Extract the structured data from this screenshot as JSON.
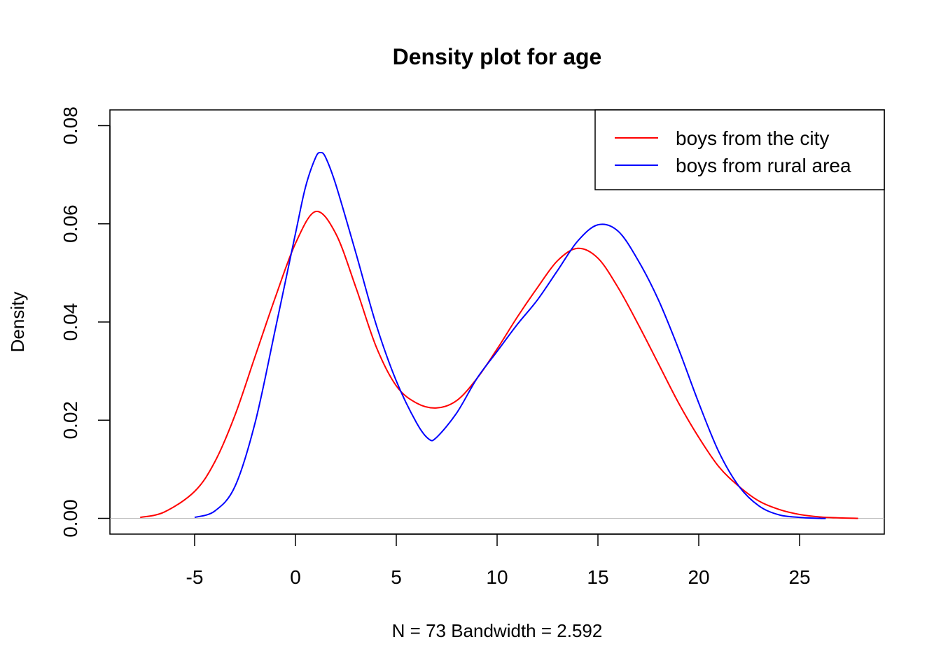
{
  "chart_data": {
    "type": "line",
    "title": "Density plot for age",
    "xlabel": "N = 73   Bandwidth = 2.592",
    "ylabel": "Density",
    "xlim": [
      -9.2,
      29.2
    ],
    "ylim": [
      -0.0032,
      0.0832
    ],
    "x_ticks": [
      -5,
      0,
      5,
      10,
      15,
      20,
      25
    ],
    "y_ticks": [
      0.0,
      0.02,
      0.04,
      0.06,
      0.08
    ],
    "x_tick_labels": [
      "-5",
      "0",
      "5",
      "10",
      "15",
      "20",
      "25"
    ],
    "y_tick_labels": [
      "0.00",
      "0.02",
      "0.04",
      "0.06",
      "0.08"
    ],
    "zero_line": true,
    "legend_position": "top-right",
    "series": [
      {
        "name": "boys from the city",
        "color": "#ff0000",
        "x": [
          -7.7,
          -6.5,
          -5,
          -4,
          -3,
          -2,
          -1,
          0,
          1,
          2,
          3,
          4,
          5,
          6,
          7,
          8,
          9,
          10,
          11,
          12,
          13,
          14,
          15,
          16,
          17,
          18,
          19,
          20,
          21,
          22,
          23,
          24,
          25,
          26,
          27,
          27.9
        ],
        "y": [
          0.0002,
          0.0013,
          0.0055,
          0.0115,
          0.021,
          0.033,
          0.045,
          0.056,
          0.0625,
          0.058,
          0.047,
          0.035,
          0.027,
          0.0235,
          0.0225,
          0.024,
          0.0285,
          0.0345,
          0.041,
          0.047,
          0.0525,
          0.055,
          0.053,
          0.047,
          0.0395,
          0.0315,
          0.0235,
          0.0165,
          0.0105,
          0.0065,
          0.0035,
          0.0018,
          0.0008,
          0.0003,
          0.0001,
          0.0
        ]
      },
      {
        "name": "boys from rural area",
        "color": "#0000ff",
        "x": [
          -5,
          -4,
          -3,
          -2,
          -1,
          0,
          0.5,
          1,
          1.25,
          1.5,
          2,
          3,
          4,
          5,
          6,
          6.6,
          7,
          8,
          9,
          10,
          11,
          12,
          13,
          14,
          15,
          16,
          17,
          18,
          19,
          20,
          21,
          22,
          23,
          24,
          25,
          26,
          26.3
        ],
        "y": [
          0.0002,
          0.0015,
          0.0065,
          0.0195,
          0.0385,
          0.058,
          0.0675,
          0.0735,
          0.0745,
          0.0735,
          0.068,
          0.054,
          0.0395,
          0.028,
          0.0195,
          0.0162,
          0.0165,
          0.0215,
          0.0285,
          0.034,
          0.0395,
          0.0445,
          0.0505,
          0.0565,
          0.0598,
          0.0585,
          0.0525,
          0.0445,
          0.0345,
          0.0235,
          0.0135,
          0.0065,
          0.0025,
          0.0007,
          0.0002,
          0.0,
          0.0
        ]
      }
    ]
  }
}
